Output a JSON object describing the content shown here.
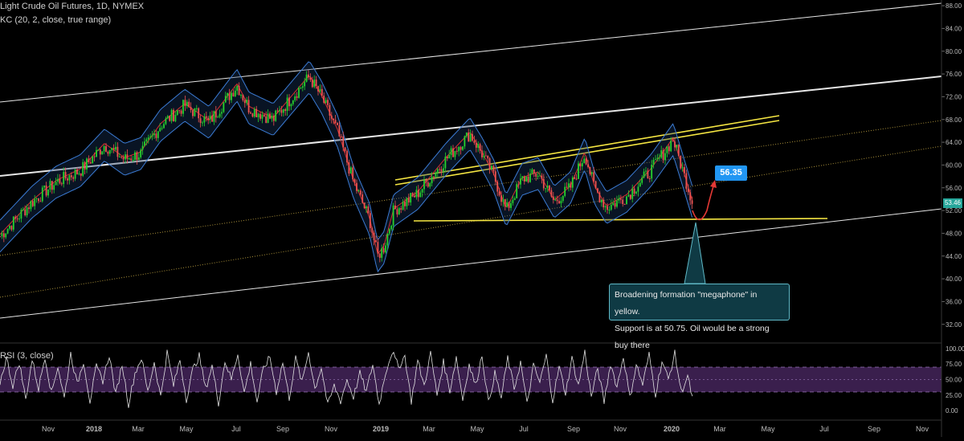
{
  "header": {
    "title": "Light Crude Oil Futures, 1D, NYMEX",
    "kc_label": "KC (20, 2, close, true range)",
    "rsi_label": "RSI (3, close)"
  },
  "annotations": {
    "callout_line1": "Broadening formation \"megaphone\" in yellow.",
    "callout_line2": "Support is at 50.75. Oil would be a strong buy there",
    "target_tag": "56.35",
    "last_price": "53.46"
  },
  "colors": {
    "background": "#000000",
    "up_candle": "#26d32e",
    "down_candle": "#ef5350",
    "keltner": "#3b7bd4",
    "basis": "#d32f2f",
    "trend": "#ffffff",
    "megaphone": "#f5e642",
    "rsi_line": "#e0e0e0",
    "rsi_band": "#3a1f4d",
    "callout_bg": "#0f3a44",
    "target_tag": "#2196f3"
  },
  "chart_data": {
    "type": "candlestick",
    "price_axis": {
      "ticks": [
        "88.00",
        "84.00",
        "80.00",
        "76.00",
        "72.00",
        "68.00",
        "64.00",
        "60.00",
        "56.00",
        "52.00",
        "48.00",
        "44.00",
        "40.00",
        "36.00",
        "32.00"
      ],
      "ylim": [
        29,
        89
      ]
    },
    "rsi_axis": {
      "ticks": [
        "100.00",
        "75.00",
        "50.00",
        "25.00",
        "0.00"
      ],
      "ylim": [
        -5,
        105
      ],
      "band": [
        30,
        70
      ]
    },
    "x_ticks": [
      "Nov",
      "2018",
      "Mar",
      "May",
      "Jul",
      "Sep",
      "Nov",
      "2019",
      "Mar",
      "May",
      "Jul",
      "Sep",
      "Nov",
      "2020",
      "Mar",
      "May",
      "Jul",
      "Sep",
      "Nov"
    ],
    "price_anchors": [
      [
        0,
        47.5
      ],
      [
        40,
        53.5
      ],
      [
        70,
        57
      ],
      [
        100,
        59
      ],
      [
        130,
        63.5
      ],
      [
        155,
        61
      ],
      [
        175,
        62
      ],
      [
        200,
        67
      ],
      [
        230,
        70.5
      ],
      [
        260,
        67.5
      ],
      [
        295,
        74
      ],
      [
        310,
        70
      ],
      [
        340,
        68
      ],
      [
        385,
        75.5
      ],
      [
        400,
        72
      ],
      [
        420,
        66
      ],
      [
        440,
        57
      ],
      [
        460,
        50.5
      ],
      [
        470,
        44
      ],
      [
        478,
        45.5
      ],
      [
        490,
        52
      ],
      [
        520,
        55
      ],
      [
        555,
        61
      ],
      [
        585,
        65.5
      ],
      [
        600,
        62
      ],
      [
        615,
        58
      ],
      [
        630,
        52
      ],
      [
        650,
        57.5
      ],
      [
        670,
        58.5
      ],
      [
        690,
        53.5
      ],
      [
        710,
        56
      ],
      [
        728,
        62
      ],
      [
        740,
        56
      ],
      [
        755,
        52.5
      ],
      [
        780,
        54.5
      ],
      [
        810,
        59
      ],
      [
        838,
        64.5
      ],
      [
        850,
        59
      ],
      [
        862,
        53.4
      ]
    ],
    "rsi_anchors": [
      [
        0,
        45
      ],
      [
        8,
        85
      ],
      [
        16,
        40
      ],
      [
        24,
        78
      ],
      [
        32,
        18
      ],
      [
        40,
        82
      ],
      [
        48,
        35
      ],
      [
        56,
        88
      ],
      [
        64,
        28
      ],
      [
        72,
        72
      ],
      [
        80,
        20
      ],
      [
        88,
        92
      ],
      [
        96,
        42
      ],
      [
        104,
        80
      ],
      [
        112,
        15
      ],
      [
        120,
        70
      ],
      [
        128,
        48
      ],
      [
        136,
        90
      ],
      [
        144,
        25
      ],
      [
        152,
        75
      ],
      [
        160,
        10
      ],
      [
        168,
        60
      ],
      [
        176,
        85
      ],
      [
        184,
        30
      ],
      [
        192,
        78
      ],
      [
        200,
        22
      ],
      [
        208,
        94
      ],
      [
        216,
        40
      ],
      [
        224,
        82
      ],
      [
        232,
        18
      ],
      [
        240,
        66
      ],
      [
        248,
        88
      ],
      [
        256,
        35
      ],
      [
        264,
        72
      ],
      [
        272,
        12
      ],
      [
        280,
        80
      ],
      [
        288,
        50
      ],
      [
        296,
        92
      ],
      [
        304,
        28
      ],
      [
        312,
        76
      ],
      [
        320,
        14
      ],
      [
        328,
        68
      ],
      [
        336,
        86
      ],
      [
        344,
        30
      ],
      [
        352,
        78
      ],
      [
        360,
        20
      ],
      [
        368,
        84
      ],
      [
        376,
        45
      ],
      [
        384,
        95
      ],
      [
        392,
        35
      ],
      [
        400,
        70
      ],
      [
        408,
        8
      ],
      [
        416,
        40
      ],
      [
        424,
        15
      ],
      [
        432,
        50
      ],
      [
        440,
        22
      ],
      [
        448,
        60
      ],
      [
        456,
        30
      ],
      [
        464,
        75
      ],
      [
        472,
        10
      ],
      [
        480,
        62
      ],
      [
        488,
        95
      ],
      [
        496,
        70
      ],
      [
        504,
        88
      ],
      [
        512,
        15
      ],
      [
        520,
        80
      ],
      [
        528,
        40
      ],
      [
        536,
        92
      ],
      [
        544,
        25
      ],
      [
        552,
        78
      ],
      [
        560,
        32
      ],
      [
        568,
        86
      ],
      [
        576,
        18
      ],
      [
        584,
        74
      ],
      [
        592,
        40
      ],
      [
        600,
        90
      ],
      [
        608,
        12
      ],
      [
        616,
        60
      ],
      [
        624,
        20
      ],
      [
        632,
        85
      ],
      [
        640,
        35
      ],
      [
        648,
        78
      ],
      [
        656,
        10
      ],
      [
        664,
        72
      ],
      [
        672,
        45
      ],
      [
        680,
        88
      ],
      [
        688,
        16
      ],
      [
        696,
        70
      ],
      [
        704,
        28
      ],
      [
        712,
        84
      ],
      [
        720,
        40
      ],
      [
        728,
        95
      ],
      [
        736,
        22
      ],
      [
        744,
        68
      ],
      [
        752,
        14
      ],
      [
        760,
        76
      ],
      [
        768,
        38
      ],
      [
        776,
        88
      ],
      [
        784,
        20
      ],
      [
        792,
        74
      ],
      [
        800,
        42
      ],
      [
        808,
        90
      ],
      [
        816,
        26
      ],
      [
        824,
        80
      ],
      [
        832,
        50
      ],
      [
        840,
        92
      ],
      [
        848,
        30
      ],
      [
        856,
        55
      ],
      [
        862,
        20
      ]
    ],
    "trend_lines": [
      {
        "role": "upper_channel",
        "from": [
          0,
          127
        ],
        "to": [
          1172,
          4
        ]
      },
      {
        "role": "upper_mid",
        "from": [
          0,
          219
        ],
        "to": [
          1172,
          95
        ]
      },
      {
        "role": "lower_channel",
        "from": [
          0,
          396
        ],
        "to": [
          1172,
          260
        ]
      },
      {
        "role": "mid_dotted_1",
        "from": [
          0,
          318
        ],
        "to": [
          1172,
          150
        ]
      },
      {
        "role": "mid_dotted_2",
        "from": [
          0,
          370
        ],
        "to": [
          1172,
          182
        ]
      }
    ],
    "megaphone": [
      {
        "from": [
          492,
          224
        ],
        "to": [
          970,
          144
        ]
      },
      {
        "from": [
          492,
          230
        ],
        "to": [
          970,
          150
        ]
      },
      {
        "from": [
          515,
          275
        ],
        "to": [
          1030,
          272
        ]
      }
    ]
  }
}
